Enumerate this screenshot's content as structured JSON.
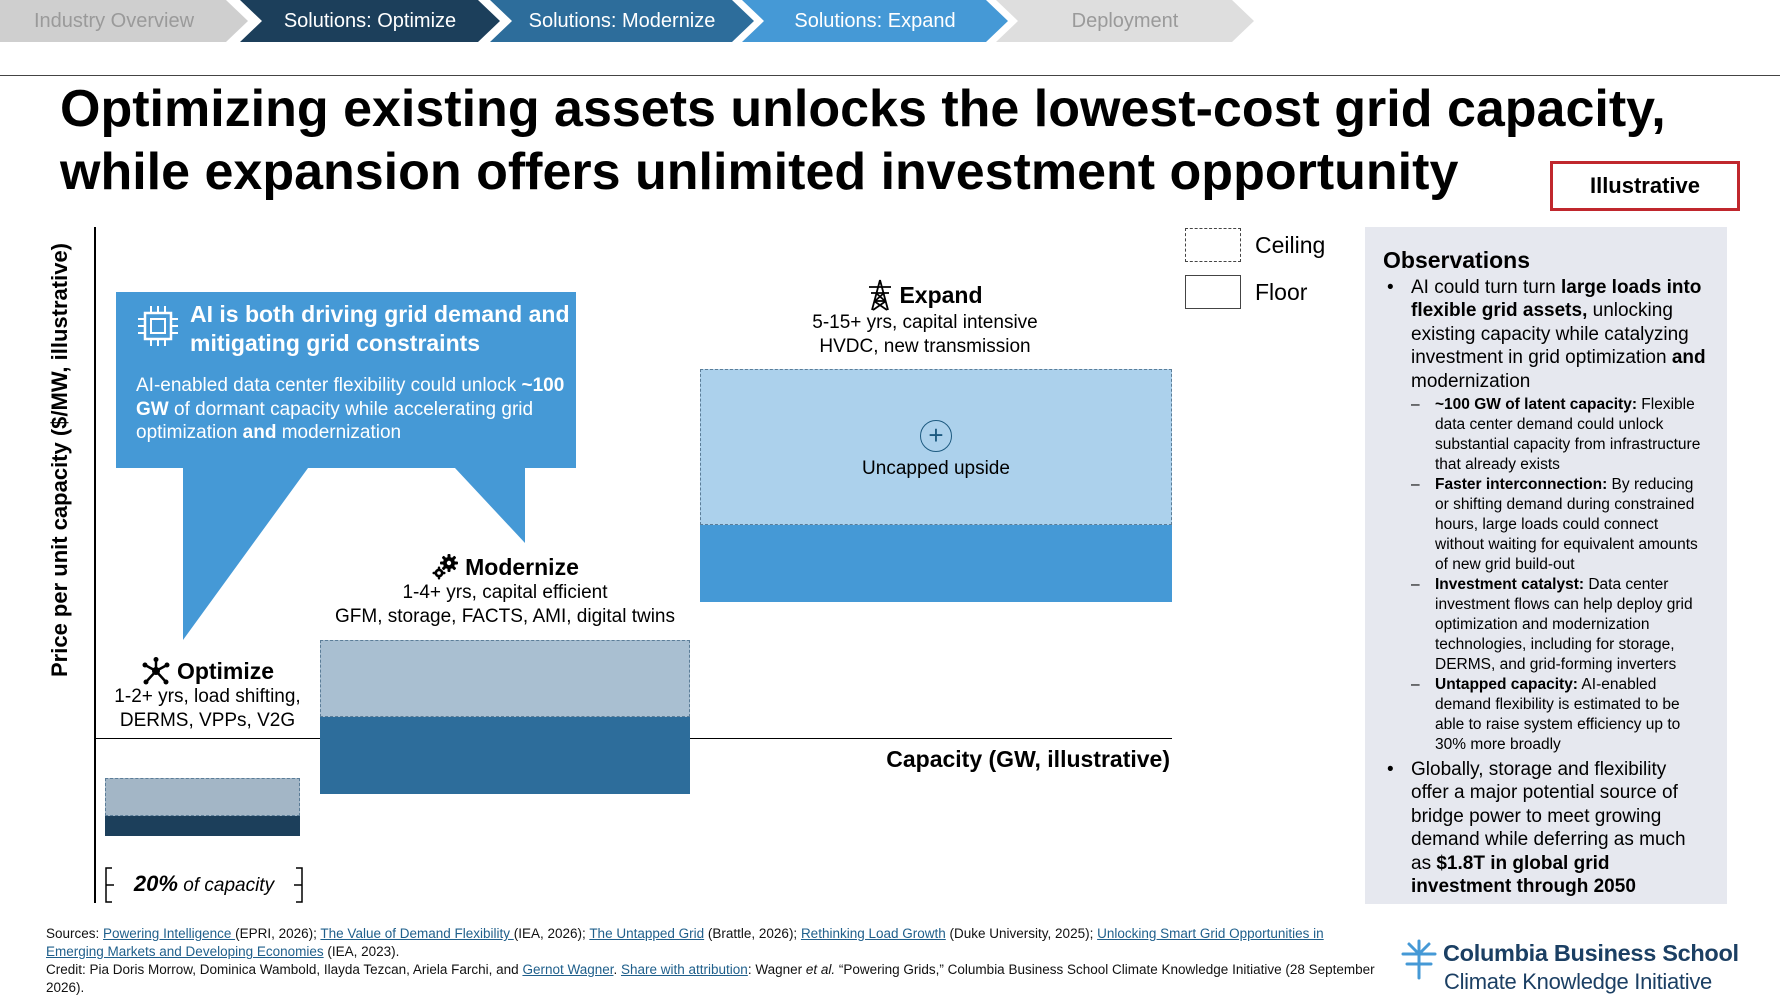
{
  "nav": {
    "items": [
      {
        "label": "Industry Overview",
        "bg": "#cfcfcf",
        "fg": "#9a9a9a"
      },
      {
        "label": "Solutions: Optimize",
        "bg": "#1c3f5b",
        "fg": "#ffffff"
      },
      {
        "label": "Solutions: Modernize",
        "bg": "#2d6d9b",
        "fg": "#ffffff"
      },
      {
        "label": "Solutions: Expand",
        "bg": "#4599d6",
        "fg": "#ffffff"
      },
      {
        "label": "Deployment",
        "bg": "#dedede",
        "fg": "#9a9a9a"
      }
    ]
  },
  "title": {
    "line1": "Optimizing existing assets unlocks the lowest-cost grid capacity,",
    "line2": "while expansion offers unlimited investment opportunity"
  },
  "badge": "Illustrative",
  "chart_data": {
    "type": "diagram",
    "ylabel": "Price per unit capacity ($/MW, illustrative)",
    "xlabel": "Capacity (GW, illustrative)",
    "legend": [
      {
        "label": "Ceiling",
        "style": "dashed"
      },
      {
        "label": "Floor",
        "style": "solid"
      }
    ],
    "segments": [
      {
        "name": "Optimize",
        "icon": "network-hub-icon",
        "line1": "1-2+ yrs, load shifting,",
        "line2": "DERMS, VPPs, V2G",
        "ceiling_color": "#a3b6c6",
        "floor_color": "#1c3f5b"
      },
      {
        "name": "Modernize",
        "icon": "gears-icon",
        "line1": "1-4+ yrs, capital efficient",
        "line2": "GFM, storage, FACTS, AMI, digital twins",
        "ceiling_color": "#a9bfd1",
        "floor_color": "#2d6d9b"
      },
      {
        "name": "Expand",
        "icon": "transmission-tower-icon",
        "line1": "5-15+ yrs, capital intensive",
        "line2": "HVDC, new transmission",
        "ceiling_color": "#acd1ec",
        "floor_color": "#4599d6",
        "upside_label": "Uncapped upside"
      }
    ],
    "brace": {
      "value": "20%",
      "suffix": " of capacity"
    }
  },
  "callout": {
    "color": "#4599d6",
    "title": "AI is both driving grid demand and mitigating grid constraints",
    "body_1": "AI-enabled data center flexibility could unlock ",
    "body_bold_1": "~100 GW",
    "body_2": " of dormant capacity while accelerating grid optimization ",
    "body_bold_2": "and",
    "body_3": " modernization"
  },
  "observations": {
    "title": "Observations",
    "b1_pre": "AI could turn turn ",
    "b1_bold": "large loads into flexible grid assets,",
    "b1_mid": " unlocking existing capacity while catalyzing investment in grid optimization ",
    "b1_and": "and",
    "b1_post": " modernization",
    "subs": [
      {
        "bold": "~100 GW of latent capacity:",
        "text": " Flexible data center demand could unlock substantial capacity from infrastructure that already exists"
      },
      {
        "bold": "Faster interconnection:",
        "text": " By reducing or shifting demand during constrained hours, large loads could connect without waiting for equivalent amounts of new grid build-out"
      },
      {
        "bold": "Investment catalyst:",
        "text": " Data center investment flows can help deploy grid optimization and modernization technologies, including for storage, DERMS, and grid-forming inverters"
      },
      {
        "bold": "Untapped capacity:",
        "text": " AI-enabled demand flexibility is estimated to be able to raise system efficiency up to 30% more broadly"
      }
    ],
    "b2_pre": "Globally, storage and flexibility offer a major potential source of bridge power to meet growing demand while deferring as much as ",
    "b2_bold": "$1.8T in global grid investment through 2050"
  },
  "footer": {
    "sources_label": "Sources: ",
    "s1_link": "Powering Intelligence ",
    "s1_text": "(EPRI, 2026); ",
    "s2_link": "The Value of Demand Flexibility ",
    "s2_text": "(IEA, 2026); ",
    "s3_link": "The Untapped Grid",
    "s3_text": " (Brattle, 2026); ",
    "s4_link": "Rethinking Load Growth",
    "s4_text": " (Duke University, 2025); ",
    "s5_link": "Unlocking Smart Grid Opportunities in Emerging Markets and Developing Economies",
    "s5_text": " (IEA, 2023).",
    "credit_pre": "Credit: Pia Doris Morrow, Dominica Wambold, Ilayda Tezcan, Ariela Farchi, and ",
    "credit_link1": "Gernot Wagner",
    "credit_mid": ". ",
    "credit_link2": "Share with attribution",
    "credit_post_1": ": Wagner ",
    "credit_etal": "et al.",
    "credit_post_2": " “Powering Grids,” Columbia Business School Climate Knowledge Initiative (28 September 2026)."
  },
  "logo": {
    "name": "Columbia Business School",
    "sub": "Climate Knowledge Initiative",
    "color": "#1b3f63"
  }
}
